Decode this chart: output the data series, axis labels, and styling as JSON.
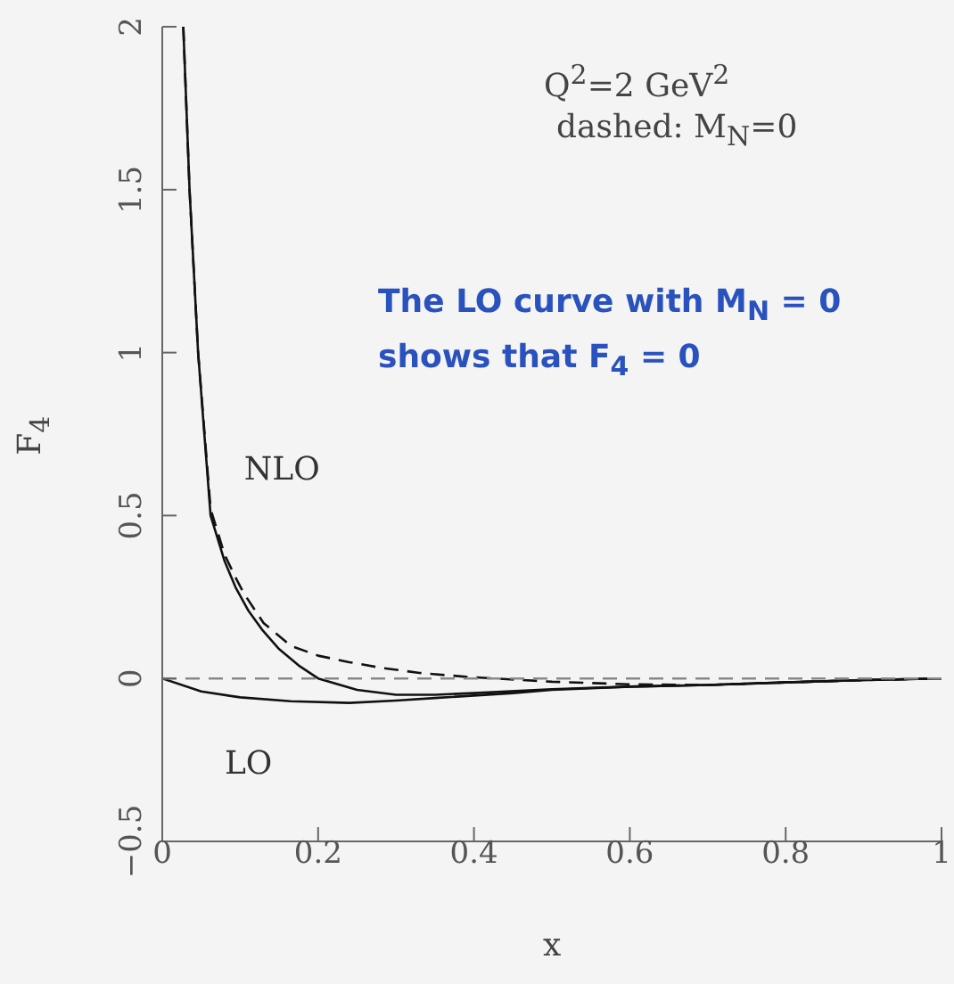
{
  "chart_data": {
    "type": "line",
    "xlabel": "x",
    "ylabel": "F$_{4}$",
    "xlim": [
      0,
      1
    ],
    "ylim": [
      -0.5,
      2
    ],
    "xticks": [
      0,
      0.2,
      0.4,
      0.6,
      0.8,
      1
    ],
    "yticks": [
      {
        "value": -0.5,
        "label": "−0.5"
      },
      0,
      0.5,
      1,
      1.5,
      2
    ],
    "marker": "none",
    "annotations": [
      "Q$^{2}$=2 GeV$^{2}$",
      "dashed: M$_{N}$=0",
      "The LO curve with M$_{N}$ = 0 shows that  F$_{4}$ = 0"
    ],
    "series": [
      {
        "name": "NLO",
        "color": "#111111",
        "line_style": "solid",
        "x": [
          0.027,
          0.035,
          0.046,
          0.062,
          0.08,
          0.094,
          0.11,
          0.128,
          0.15,
          0.175,
          0.2,
          0.25,
          0.3,
          0.35,
          0.4,
          0.5,
          0.6,
          0.7,
          0.8,
          0.9,
          1
        ],
        "values": [
          2,
          1.5,
          1,
          0.5,
          0.36,
          0.28,
          0.21,
          0.15,
          0.09,
          0.04,
          0,
          -0.035,
          -0.05,
          -0.05,
          -0.045,
          -0.033,
          -0.025,
          -0.02,
          -0.012,
          -0.005,
          0
        ]
      },
      {
        "color": "#111111",
        "line_style": "dashed",
        "x": [
          0.027,
          0.035,
          0.046,
          0.062,
          0.08,
          0.094,
          0.105,
          0.13,
          0.165,
          0.2,
          0.24,
          0.28,
          0.33,
          0.39,
          0.5,
          0.6,
          0.7,
          0.8,
          0.9,
          1
        ],
        "values": [
          2,
          1.5,
          1,
          0.52,
          0.38,
          0.31,
          0.26,
          0.17,
          0.1,
          0.07,
          0.05,
          0.033,
          0.017,
          0.005,
          -0.01,
          -0.018,
          -0.02,
          -0.012,
          -0.005,
          0
        ]
      },
      {
        "name": "LO",
        "color": "#111111",
        "line_style": "solid",
        "x": [
          0,
          0.05,
          0.1,
          0.165,
          0.24,
          0.3,
          0.35,
          0.45,
          0.5,
          0.6,
          0.7,
          0.8,
          0.9,
          1
        ],
        "values": [
          0,
          -0.04,
          -0.058,
          -0.07,
          -0.075,
          -0.068,
          -0.06,
          -0.045,
          -0.035,
          -0.025,
          -0.02,
          -0.012,
          -0.005,
          0
        ]
      },
      {
        "color": "#888888",
        "line_style": "dashed",
        "x": [
          0,
          1
        ],
        "values": [
          0,
          0
        ]
      }
    ]
  }
}
